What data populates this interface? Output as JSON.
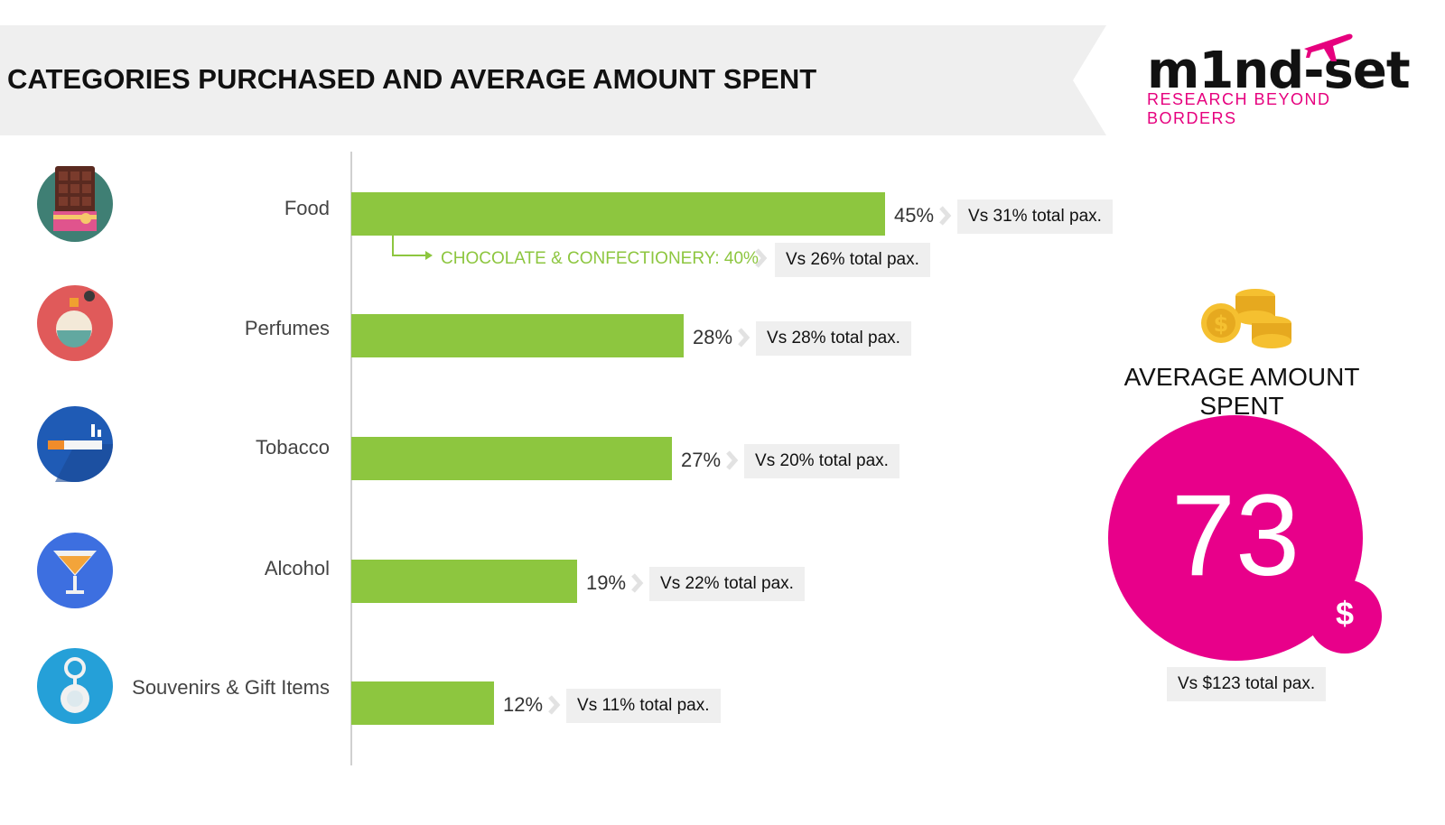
{
  "header": {
    "title": "CATEGORIES PURCHASED AND AVERAGE AMOUNT SPENT"
  },
  "logo": {
    "wordmark": "m1nd-set",
    "tagline": "RESEARCH BEYOND BORDERS"
  },
  "colors": {
    "bar": "#8dc63f",
    "accent": "#e8008a",
    "label_box": "#efefef"
  },
  "chart_data": {
    "type": "bar",
    "orientation": "horizontal",
    "categories": [
      "Food",
      "Perfumes",
      "Tobacco",
      "Alcohol",
      "Souvenirs & Gift Items"
    ],
    "values": [
      45,
      28,
      27,
      19,
      12
    ],
    "value_labels": [
      "45%",
      "28%",
      "27%",
      "19%",
      "12%"
    ],
    "comparison_labels": [
      "Vs 31% total pax.",
      "Vs 28% total pax.",
      "Vs 20% total pax.",
      "Vs 22% total pax.",
      "Vs 11% total pax."
    ],
    "xlim": [
      0,
      100
    ],
    "grid": false,
    "icons": [
      "chocolate-icon",
      "perfume-icon",
      "cigarette-icon",
      "cocktail-icon",
      "keychain-icon"
    ],
    "sub_category": {
      "label": "CHOCOLATE & CONFECTIONERY: 40%",
      "value": 40,
      "comparison": "Vs 26% total pax."
    }
  },
  "average": {
    "title": "AVERAGE AMOUNT SPENT",
    "value": "73",
    "currency": "$",
    "comparison": "Vs $123 total pax."
  }
}
